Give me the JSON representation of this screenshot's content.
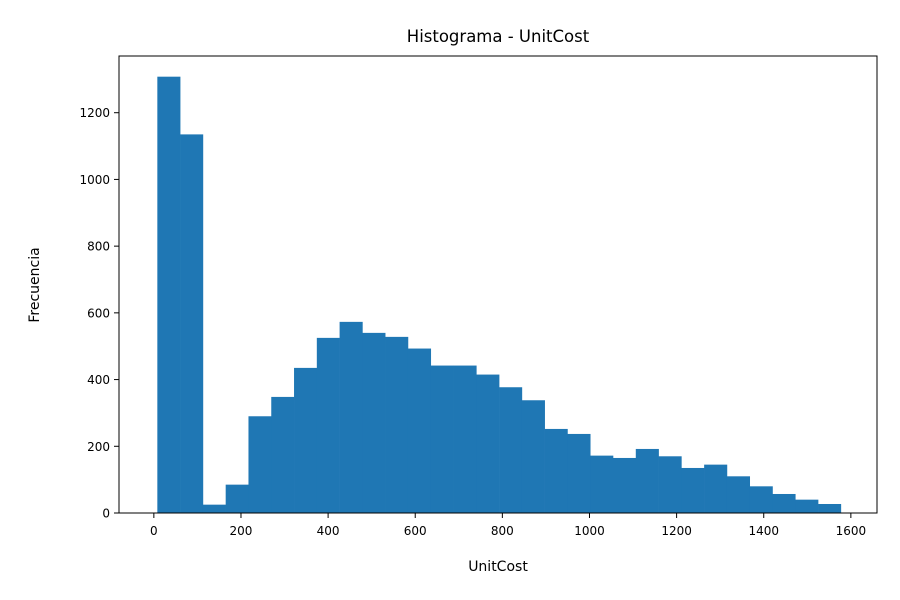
{
  "chart_data": {
    "type": "bar",
    "title": "Histograma - UnitCost",
    "xlabel": "UnitCost",
    "ylabel": "Frecuencia",
    "xlim": [
      -80,
      1660
    ],
    "ylim": [
      0,
      1370
    ],
    "xticks": [
      0,
      200,
      400,
      600,
      800,
      1000,
      1200,
      1400,
      1600
    ],
    "yticks": [
      0,
      200,
      400,
      600,
      800,
      1000,
      1200
    ],
    "grid": false,
    "bar_color": "#1f77b4",
    "bin_edges": [
      8,
      60.3,
      112.6,
      164.9,
      217.2,
      269.5,
      321.8,
      374.1,
      426.4,
      478.7,
      531,
      583.3,
      635.6,
      687.9,
      740.2,
      792.5,
      844.8,
      897.1,
      949.4,
      1001.7,
      1054,
      1106.3,
      1158.6,
      1210.9,
      1263.2,
      1315.5,
      1367.8,
      1420.1,
      1472.4,
      1524.7,
      1577
    ],
    "values": [
      1308,
      1135,
      25,
      85,
      290,
      348,
      435,
      525,
      573,
      540,
      528,
      493,
      442,
      442,
      415,
      377,
      338,
      252,
      237,
      172,
      165,
      192,
      170,
      135,
      145,
      110,
      80,
      57,
      40,
      27
    ]
  }
}
